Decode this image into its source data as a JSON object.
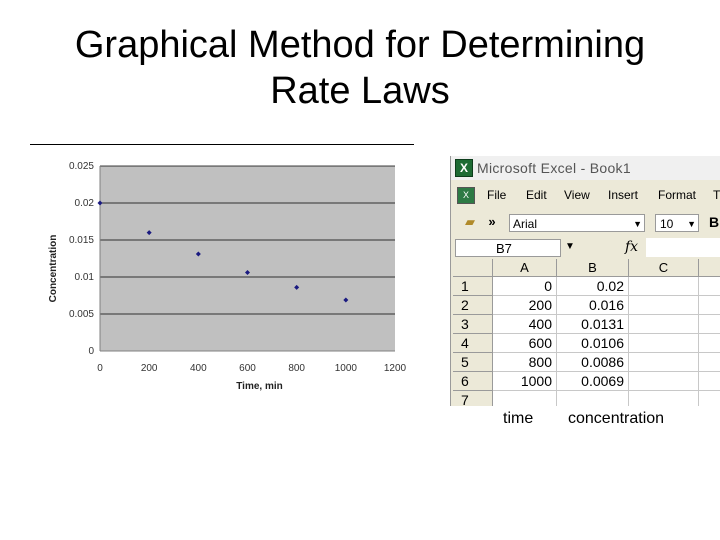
{
  "slide": {
    "title_line1": "Graphical Method for Determining",
    "title_line2": "Rate Laws",
    "caption_time": "time",
    "caption_concentration": "concentration"
  },
  "chart_data": {
    "type": "scatter",
    "x": [
      0,
      200,
      400,
      600,
      800,
      1000
    ],
    "y": [
      0.02,
      0.016,
      0.0131,
      0.0106,
      0.0086,
      0.0069
    ],
    "xlabel": "Time, min",
    "ylabel": "Concentration",
    "xlim": [
      0,
      1200
    ],
    "ylim": [
      0,
      0.025
    ],
    "xticks": [
      "0",
      "200",
      "400",
      "600",
      "800",
      "1000",
      "1200"
    ],
    "yticks": [
      "0",
      "0.005",
      "0.01",
      "0.015",
      "0.02",
      "0.025"
    ],
    "grid": true,
    "colors": {
      "plot_bg": "#c0c0c0",
      "marker": "#1a1a80",
      "gridline": "#000000"
    }
  },
  "excel": {
    "app_title": "Microsoft Excel - Book1",
    "menu": [
      "File",
      "Edit",
      "View",
      "Insert",
      "Format",
      "T"
    ],
    "font_name": "Arial",
    "font_size": "10",
    "bold": "B",
    "name_box": "B7",
    "fx": "fx",
    "columns": [
      "A",
      "B",
      "C"
    ],
    "rows": [
      {
        "num": "1",
        "a": "0",
        "b": "0.02"
      },
      {
        "num": "2",
        "a": "200",
        "b": "0.016"
      },
      {
        "num": "3",
        "a": "400",
        "b": "0.0131"
      },
      {
        "num": "4",
        "a": "600",
        "b": "0.0106"
      },
      {
        "num": "5",
        "a": "800",
        "b": "0.0086"
      },
      {
        "num": "6",
        "a": "1000",
        "b": "0.0069"
      },
      {
        "num": "7",
        "a": "",
        "b": ""
      }
    ]
  }
}
